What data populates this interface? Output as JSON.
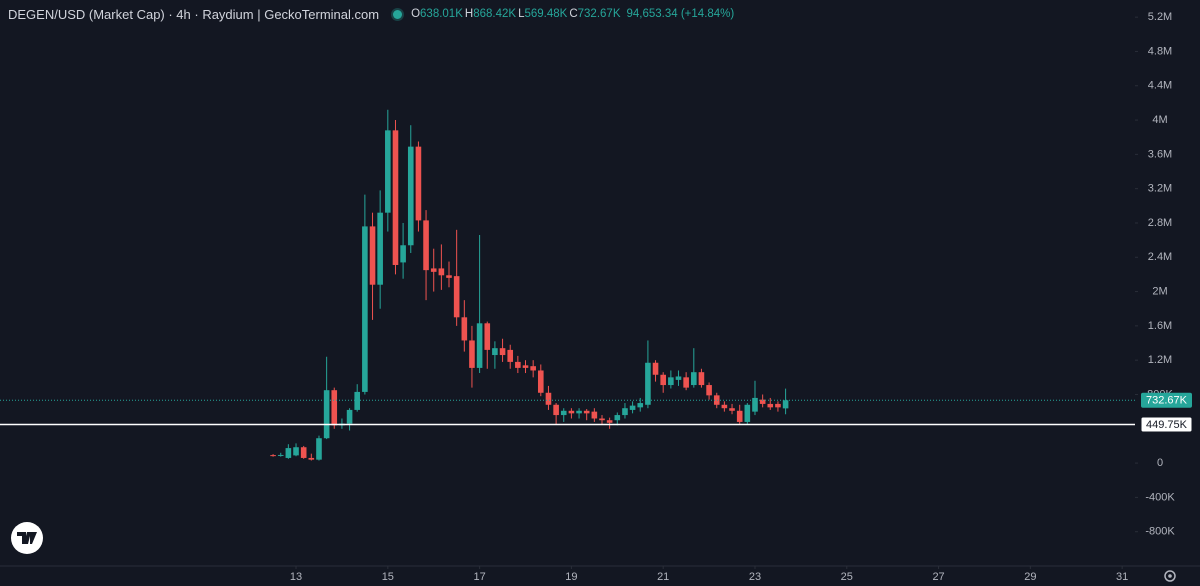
{
  "chart_data": {
    "type": "candlestick",
    "title": "DEGEN/USD (Market Cap) · 4h · Raydium | GeckoTerminal.com",
    "legend": {
      "open_key": "O",
      "open": "638.01K",
      "high_key": "H",
      "high": "868.42K",
      "low_key": "L",
      "low": "569.48K",
      "close_key": "C",
      "close": "732.67K",
      "change": "94,653.34 (+14.84%)"
    },
    "x": [
      12.5,
      12.667,
      12.833,
      13,
      13.167,
      13.333,
      13.5,
      13.667,
      13.833,
      14,
      14.167,
      14.333,
      14.5,
      14.667,
      14.833,
      15,
      15.167,
      15.333,
      15.5,
      15.667,
      15.833,
      16,
      16.167,
      16.333,
      16.5,
      16.667,
      16.833,
      17,
      17.167,
      17.333,
      17.5,
      17.667,
      17.833,
      18,
      18.167,
      18.333,
      18.5,
      18.667,
      18.833,
      19,
      19.167,
      19.333,
      19.5,
      19.667,
      19.833,
      20,
      20.167,
      20.333,
      20.5,
      20.667,
      20.833,
      21,
      21.167,
      21.333,
      21.5,
      21.667,
      21.833,
      22,
      22.167,
      22.333,
      22.5,
      22.667,
      22.833,
      23,
      23.167,
      23.333,
      23.5,
      23.667
    ],
    "open": [
      93000,
      85000,
      60000,
      90000,
      185000,
      60000,
      40000,
      290000,
      850000,
      440000,
      460000,
      620000,
      830000,
      2760000,
      2080000,
      2920000,
      3880000,
      2340000,
      2540000,
      3690000,
      2830000,
      2270000,
      2270000,
      2190000,
      2180000,
      1700000,
      1430000,
      1110000,
      1630000,
      1260000,
      1340000,
      1320000,
      1180000,
      1140000,
      1130000,
      1080000,
      820000,
      680000,
      560000,
      610000,
      580000,
      610000,
      600000,
      520000,
      500000,
      500000,
      560000,
      620000,
      650000,
      680000,
      1170000,
      1030000,
      910000,
      970000,
      1000000,
      910000,
      1060000,
      910000,
      790000,
      680000,
      640000,
      610000,
      480000,
      600000,
      740000,
      690000,
      690000,
      638010
    ],
    "high": [
      105000,
      120000,
      220000,
      230000,
      200000,
      110000,
      320000,
      1240000,
      880000,
      520000,
      640000,
      920000,
      3130000,
      2920000,
      3180000,
      4120000,
      4000000,
      2800000,
      3940000,
      3750000,
      2950000,
      2500000,
      2550000,
      2350000,
      2720000,
      1900000,
      1600000,
      2660000,
      1650000,
      1420000,
      1450000,
      1380000,
      1250000,
      1200000,
      1200000,
      1150000,
      900000,
      700000,
      640000,
      640000,
      640000,
      630000,
      640000,
      560000,
      530000,
      590000,
      700000,
      720000,
      760000,
      1430000,
      1200000,
      1060000,
      1080000,
      1080000,
      1060000,
      1340000,
      1100000,
      940000,
      820000,
      720000,
      690000,
      680000,
      700000,
      960000,
      800000,
      760000,
      720000,
      868420
    ],
    "low": [
      75000,
      75000,
      50000,
      80000,
      50000,
      30000,
      30000,
      280000,
      400000,
      400000,
      380000,
      600000,
      800000,
      1670000,
      1800000,
      2700000,
      2200000,
      2150000,
      2450000,
      2700000,
      1900000,
      2000000,
      2020000,
      2050000,
      1600000,
      1300000,
      880000,
      1050000,
      1100000,
      1100000,
      1180000,
      1100000,
      1050000,
      1050000,
      1000000,
      780000,
      620000,
      450000,
      480000,
      520000,
      520000,
      500000,
      480000,
      450000,
      400000,
      440000,
      520000,
      580000,
      600000,
      640000,
      950000,
      820000,
      870000,
      900000,
      850000,
      880000,
      880000,
      740000,
      640000,
      600000,
      570000,
      450000,
      450000,
      560000,
      650000,
      620000,
      600000,
      569480
    ],
    "close": [
      85000,
      95000,
      175000,
      185000,
      60000,
      40000,
      290000,
      850000,
      440000,
      460000,
      620000,
      830000,
      2760000,
      2080000,
      2920000,
      3880000,
      2310000,
      2540000,
      3690000,
      2830000,
      2250000,
      2230000,
      2190000,
      2160000,
      1700000,
      1430000,
      1110000,
      1630000,
      1320000,
      1340000,
      1260000,
      1180000,
      1110000,
      1110000,
      1080000,
      820000,
      680000,
      560000,
      610000,
      580000,
      610000,
      580000,
      520000,
      500000,
      470000,
      560000,
      640000,
      670000,
      700000,
      1170000,
      1030000,
      910000,
      1000000,
      1010000,
      880000,
      1060000,
      910000,
      790000,
      680000,
      640000,
      610000,
      480000,
      680000,
      760000,
      690000,
      650000,
      650000,
      732670
    ],
    "up_color": "#26a69a",
    "down_color": "#ef5350",
    "xlim": [
      6.55,
      31.28
    ],
    "xticks": [
      13,
      15,
      17,
      19,
      21,
      23,
      25,
      27,
      29,
      31
    ],
    "ylim": [
      -1200000,
      5400000
    ],
    "yticks": [
      {
        "value": 5200000,
        "label": "5.2M"
      },
      {
        "value": 4800000,
        "label": "4.8M"
      },
      {
        "value": 4400000,
        "label": "4.4M"
      },
      {
        "value": 4000000,
        "label": "4M"
      },
      {
        "value": 3600000,
        "label": "3.6M"
      },
      {
        "value": 3200000,
        "label": "3.2M"
      },
      {
        "value": 2800000,
        "label": "2.8M"
      },
      {
        "value": 2400000,
        "label": "2.4M"
      },
      {
        "value": 2000000,
        "label": "2M"
      },
      {
        "value": 1600000,
        "label": "1.6M"
      },
      {
        "value": 1200000,
        "label": "1.2M"
      },
      {
        "value": 800000,
        "label": "800K"
      },
      0,
      {
        "value": -400000,
        "label": "-400K"
      },
      {
        "value": -800000,
        "label": "-800K"
      }
    ],
    "grid": false,
    "price_lines": [
      {
        "value": 732670,
        "label": "732.67K",
        "color": "#26a69a"
      },
      {
        "value": 449750,
        "label": "449.75K",
        "color": "#ffffff"
      }
    ]
  }
}
